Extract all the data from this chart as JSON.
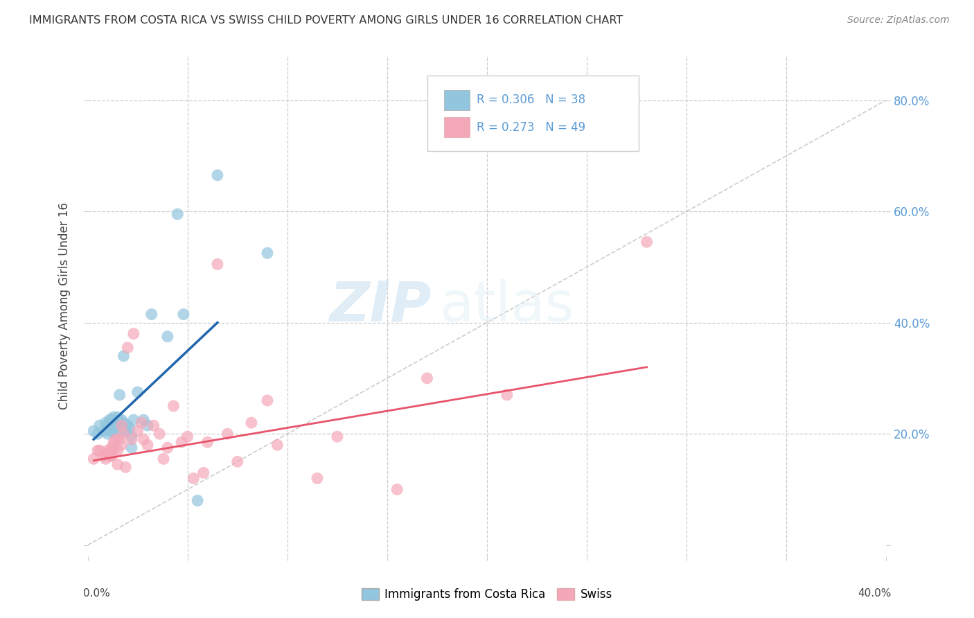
{
  "title": "IMMIGRANTS FROM COSTA RICA VS SWISS CHILD POVERTY AMONG GIRLS UNDER 16 CORRELATION CHART",
  "source": "Source: ZipAtlas.com",
  "ylabel": "Child Poverty Among Girls Under 16",
  "xlim": [
    0.0,
    0.4
  ],
  "ylim": [
    -0.02,
    0.88
  ],
  "yticks": [
    0.0,
    0.2,
    0.4,
    0.6,
    0.8
  ],
  "legend_r1": "0.306",
  "legend_n1": "38",
  "legend_r2": "0.273",
  "legend_n2": "49",
  "blue_color": "#92c5de",
  "pink_color": "#f4a7b9",
  "blue_line_color": "#2166ac",
  "pink_line_color": "#e8536a",
  "diagonal_color": "#c0c0c0",
  "watermark_zip": "ZIP",
  "watermark_atlas": "atlas",
  "blue_scatter_x": [
    0.003,
    0.005,
    0.006,
    0.008,
    0.009,
    0.01,
    0.01,
    0.011,
    0.011,
    0.012,
    0.012,
    0.013,
    0.013,
    0.014,
    0.014,
    0.015,
    0.015,
    0.016,
    0.017,
    0.017,
    0.018,
    0.018,
    0.019,
    0.02,
    0.021,
    0.022,
    0.022,
    0.023,
    0.025,
    0.028,
    0.03,
    0.032,
    0.04,
    0.045,
    0.048,
    0.055,
    0.065,
    0.09
  ],
  "blue_scatter_y": [
    0.205,
    0.2,
    0.215,
    0.205,
    0.22,
    0.215,
    0.2,
    0.225,
    0.205,
    0.225,
    0.205,
    0.23,
    0.21,
    0.22,
    0.2,
    0.23,
    0.215,
    0.27,
    0.225,
    0.205,
    0.34,
    0.22,
    0.205,
    0.215,
    0.21,
    0.195,
    0.175,
    0.225,
    0.275,
    0.225,
    0.215,
    0.415,
    0.375,
    0.595,
    0.415,
    0.08,
    0.665,
    0.525
  ],
  "pink_scatter_x": [
    0.003,
    0.005,
    0.006,
    0.008,
    0.009,
    0.01,
    0.01,
    0.011,
    0.012,
    0.012,
    0.013,
    0.013,
    0.014,
    0.015,
    0.015,
    0.016,
    0.017,
    0.017,
    0.018,
    0.019,
    0.02,
    0.022,
    0.023,
    0.025,
    0.027,
    0.028,
    0.03,
    0.033,
    0.036,
    0.038,
    0.04,
    0.043,
    0.047,
    0.05,
    0.053,
    0.058,
    0.06,
    0.065,
    0.07,
    0.075,
    0.082,
    0.09,
    0.095,
    0.115,
    0.125,
    0.155,
    0.17,
    0.21,
    0.28
  ],
  "pink_scatter_y": [
    0.155,
    0.17,
    0.17,
    0.16,
    0.155,
    0.165,
    0.17,
    0.16,
    0.175,
    0.16,
    0.185,
    0.17,
    0.19,
    0.17,
    0.145,
    0.19,
    0.18,
    0.215,
    0.2,
    0.14,
    0.355,
    0.19,
    0.38,
    0.205,
    0.22,
    0.19,
    0.18,
    0.215,
    0.2,
    0.155,
    0.175,
    0.25,
    0.185,
    0.195,
    0.12,
    0.13,
    0.185,
    0.505,
    0.2,
    0.15,
    0.22,
    0.26,
    0.18,
    0.12,
    0.195,
    0.1,
    0.3,
    0.27,
    0.545
  ],
  "blue_line_x": [
    0.003,
    0.065
  ],
  "blue_line_y": [
    0.19,
    0.4
  ],
  "pink_line_x": [
    0.003,
    0.28
  ],
  "pink_line_y": [
    0.152,
    0.32
  ]
}
